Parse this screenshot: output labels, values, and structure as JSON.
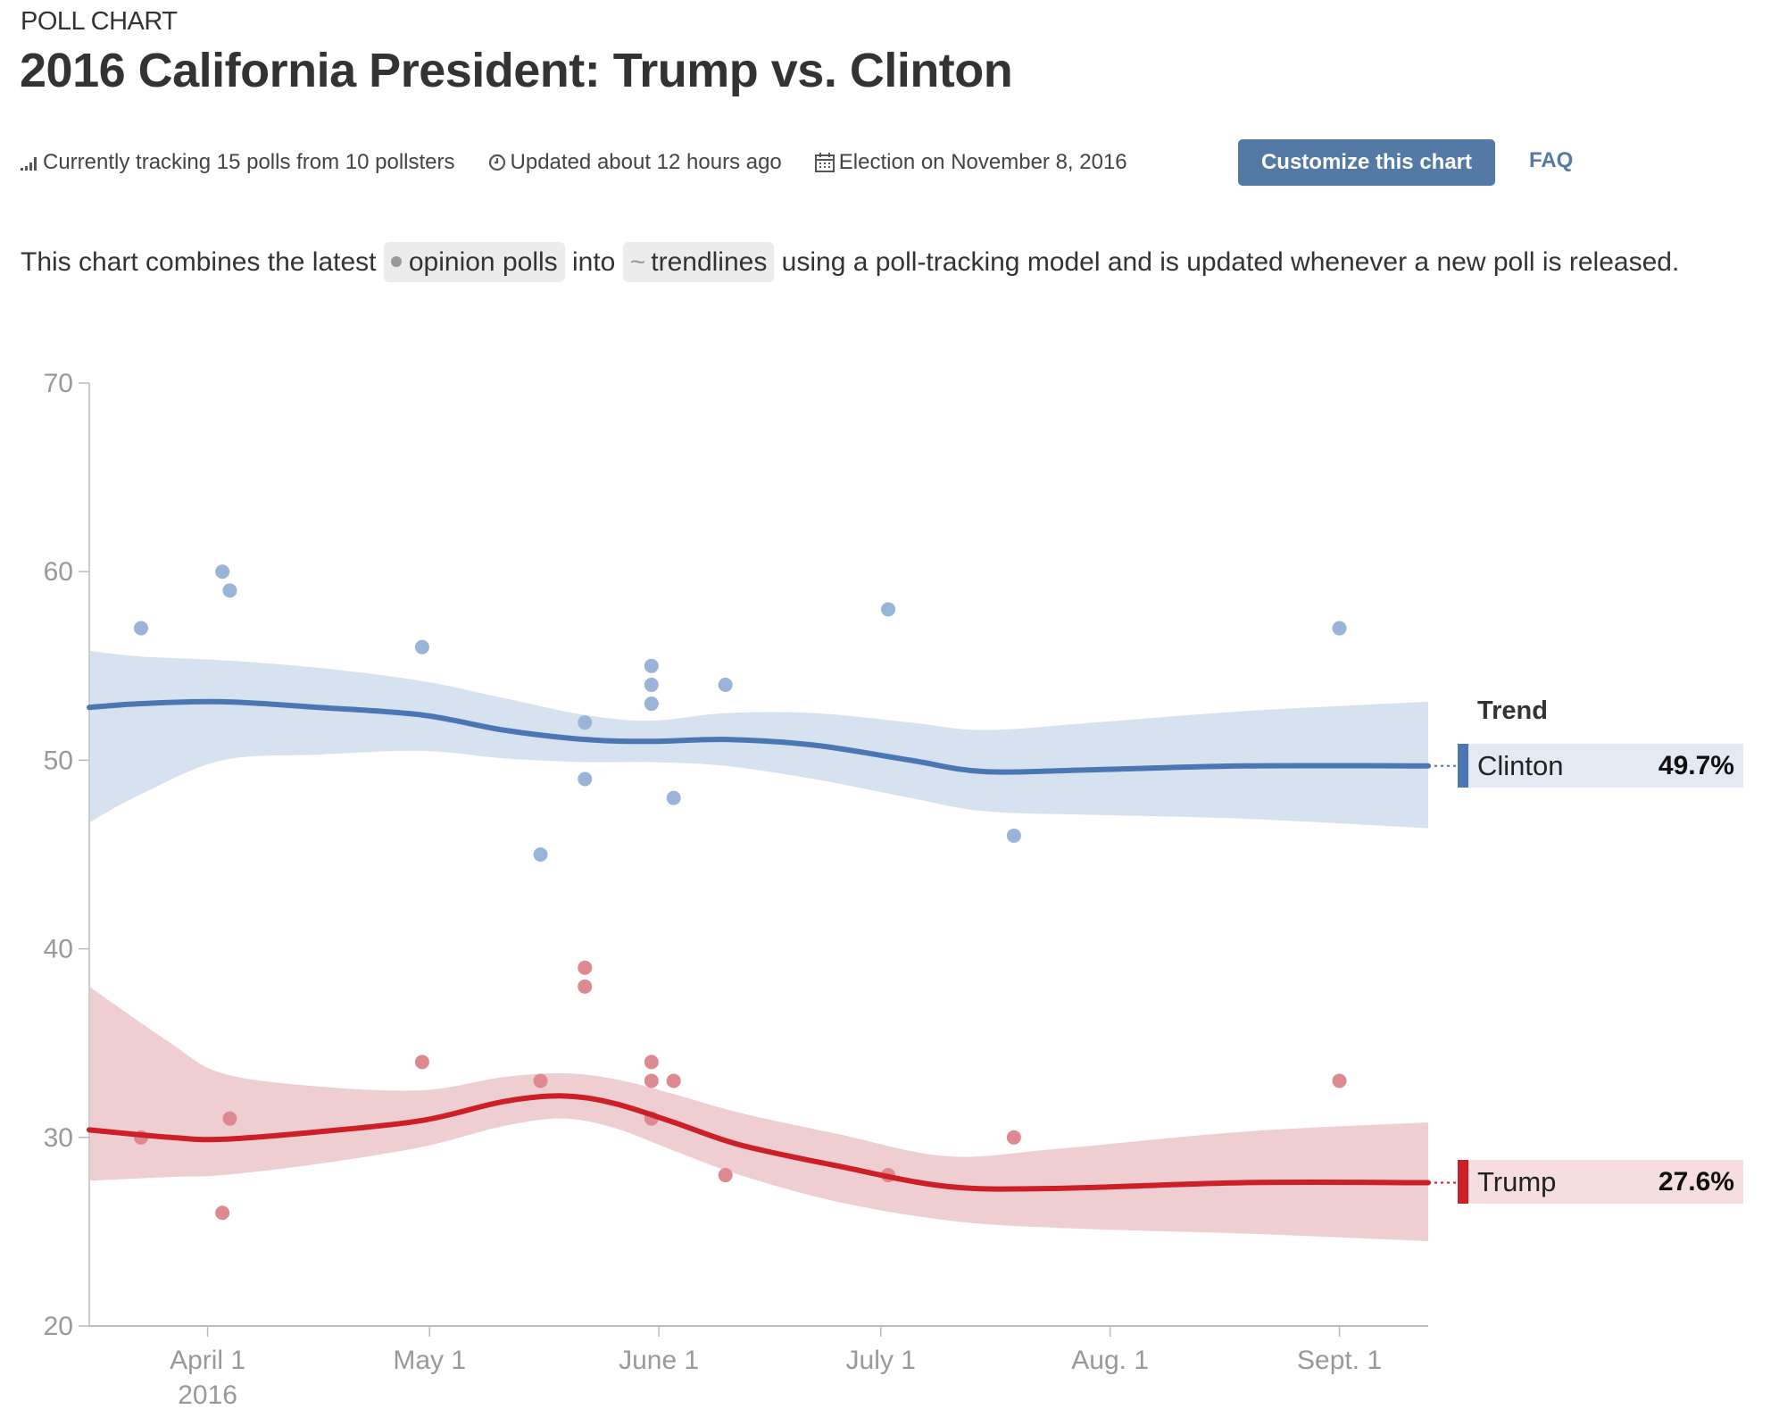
{
  "header": {
    "kicker": "POLL CHART",
    "title": "2016 California President: Trump vs. Clinton"
  },
  "meta": {
    "tracking": {
      "icon": "signal-bars-icon",
      "text": "Currently tracking 15 polls from 10 pollsters"
    },
    "updated": {
      "icon": "clock-icon",
      "text": "Updated about 12 hours ago"
    },
    "election": {
      "icon": "calendar-icon",
      "text": "Election on November 8, 2016"
    },
    "customize_button": "Customize this chart",
    "faq_link": "FAQ"
  },
  "description": {
    "part1": "This chart combines the latest",
    "pill_polls": "opinion polls",
    "part2": "into",
    "pill_trend_icon": "~",
    "pill_trend": "trendlines",
    "part3": "using a poll-tracking model and is updated whenever a new poll is released."
  },
  "colors": {
    "clinton": "#4a76b4",
    "clinton_dot": "#99b4d6",
    "clinton_band": "#d4e0ee",
    "clinton_legend_bg": "#e3eaf4",
    "trump": "#cc1f27",
    "trump_dot": "#dc8a90",
    "trump_band": "#eecbd0",
    "trump_legend_bg": "#f5dde0",
    "accent": "#5579a5"
  },
  "legend": {
    "title": "Trend",
    "items": [
      {
        "name": "Clinton",
        "value": "49.7%"
      },
      {
        "name": "Trump",
        "value": "27.6%"
      }
    ]
  },
  "chart_data": {
    "type": "scatter",
    "title": "2016 California President: Trump vs. Clinton",
    "xlabel": "",
    "ylabel": "",
    "ylim": [
      20,
      70
    ],
    "yticks": [
      20,
      30,
      40,
      50,
      60,
      70
    ],
    "x_range_days_from_apr1": [
      -16,
      165
    ],
    "xticks": [
      {
        "label": "April 1",
        "sublabel": "2016",
        "day": 0
      },
      {
        "label": "May 1",
        "sublabel": "",
        "day": 30
      },
      {
        "label": "June 1",
        "sublabel": "",
        "day": 61
      },
      {
        "label": "July 1",
        "sublabel": "",
        "day": 91
      },
      {
        "label": "Aug. 1",
        "sublabel": "",
        "day": 122
      },
      {
        "label": "Sept. 1",
        "sublabel": "",
        "day": 153
      }
    ],
    "grid": false,
    "legend_position": "right",
    "series": [
      {
        "name": "Clinton",
        "final_value": 49.7,
        "polls": [
          {
            "day": -9,
            "value": 57
          },
          {
            "day": 2,
            "value": 60
          },
          {
            "day": 3,
            "value": 59
          },
          {
            "day": 29,
            "value": 56
          },
          {
            "day": 45,
            "value": 45
          },
          {
            "day": 51,
            "value": 52
          },
          {
            "day": 51,
            "value": 49
          },
          {
            "day": 60,
            "value": 55
          },
          {
            "day": 60,
            "value": 54
          },
          {
            "day": 60,
            "value": 53
          },
          {
            "day": 63,
            "value": 48
          },
          {
            "day": 70,
            "value": 54
          },
          {
            "day": 92,
            "value": 58
          },
          {
            "day": 109,
            "value": 46
          },
          {
            "day": 153,
            "value": 57
          }
        ],
        "trend": [
          {
            "day": -16,
            "value": 52.8,
            "lo": 46.7,
            "hi": 55.8
          },
          {
            "day": -9,
            "value": 53.0,
            "lo": 48.2,
            "hi": 55.5
          },
          {
            "day": 2,
            "value": 53.1,
            "lo": 50.0,
            "hi": 55.3
          },
          {
            "day": 15,
            "value": 52.8,
            "lo": 50.3,
            "hi": 54.9
          },
          {
            "day": 29,
            "value": 52.4,
            "lo": 50.5,
            "hi": 54.2
          },
          {
            "day": 40,
            "value": 51.6,
            "lo": 50.1,
            "hi": 53.3
          },
          {
            "day": 51,
            "value": 51.1,
            "lo": 49.9,
            "hi": 52.4
          },
          {
            "day": 60,
            "value": 51.0,
            "lo": 49.9,
            "hi": 52.1
          },
          {
            "day": 70,
            "value": 51.1,
            "lo": 49.7,
            "hi": 52.5
          },
          {
            "day": 82,
            "value": 50.8,
            "lo": 49.0,
            "hi": 52.5
          },
          {
            "day": 95,
            "value": 50.0,
            "lo": 48.0,
            "hi": 52.0
          },
          {
            "day": 105,
            "value": 49.4,
            "lo": 47.3,
            "hi": 51.6
          },
          {
            "day": 120,
            "value": 49.5,
            "lo": 47.1,
            "hi": 52.0
          },
          {
            "day": 140,
            "value": 49.7,
            "lo": 46.9,
            "hi": 52.6
          },
          {
            "day": 165,
            "value": 49.7,
            "lo": 46.4,
            "hi": 53.1
          }
        ]
      },
      {
        "name": "Trump",
        "final_value": 27.6,
        "polls": [
          {
            "day": -9,
            "value": 30
          },
          {
            "day": 2,
            "value": 26
          },
          {
            "day": 3,
            "value": 31
          },
          {
            "day": 29,
            "value": 34
          },
          {
            "day": 45,
            "value": 33
          },
          {
            "day": 51,
            "value": 39
          },
          {
            "day": 51,
            "value": 38
          },
          {
            "day": 60,
            "value": 34
          },
          {
            "day": 60,
            "value": 33
          },
          {
            "day": 60,
            "value": 31
          },
          {
            "day": 63,
            "value": 33
          },
          {
            "day": 70,
            "value": 28
          },
          {
            "day": 92,
            "value": 28
          },
          {
            "day": 109,
            "value": 30
          },
          {
            "day": 153,
            "value": 33
          }
        ],
        "trend": [
          {
            "day": -16,
            "value": 30.4,
            "lo": 27.7,
            "hi": 38.0
          },
          {
            "day": -5,
            "value": 30.0,
            "lo": 27.9,
            "hi": 35.0
          },
          {
            "day": 2,
            "value": 29.9,
            "lo": 28.0,
            "hi": 33.4
          },
          {
            "day": 15,
            "value": 30.3,
            "lo": 28.6,
            "hi": 32.7
          },
          {
            "day": 29,
            "value": 30.9,
            "lo": 29.5,
            "hi": 32.5
          },
          {
            "day": 40,
            "value": 31.9,
            "lo": 30.6,
            "hi": 33.2
          },
          {
            "day": 48,
            "value": 32.2,
            "lo": 31.0,
            "hi": 33.4
          },
          {
            "day": 55,
            "value": 31.8,
            "lo": 30.5,
            "hi": 33.1
          },
          {
            "day": 63,
            "value": 30.8,
            "lo": 29.3,
            "hi": 32.3
          },
          {
            "day": 72,
            "value": 29.6,
            "lo": 28.0,
            "hi": 31.3
          },
          {
            "day": 85,
            "value": 28.5,
            "lo": 26.6,
            "hi": 30.2
          },
          {
            "day": 100,
            "value": 27.4,
            "lo": 25.6,
            "hi": 29.0
          },
          {
            "day": 115,
            "value": 27.3,
            "lo": 25.2,
            "hi": 29.4
          },
          {
            "day": 140,
            "value": 27.6,
            "lo": 24.9,
            "hi": 30.3
          },
          {
            "day": 165,
            "value": 27.6,
            "lo": 24.5,
            "hi": 30.8
          }
        ]
      }
    ]
  }
}
